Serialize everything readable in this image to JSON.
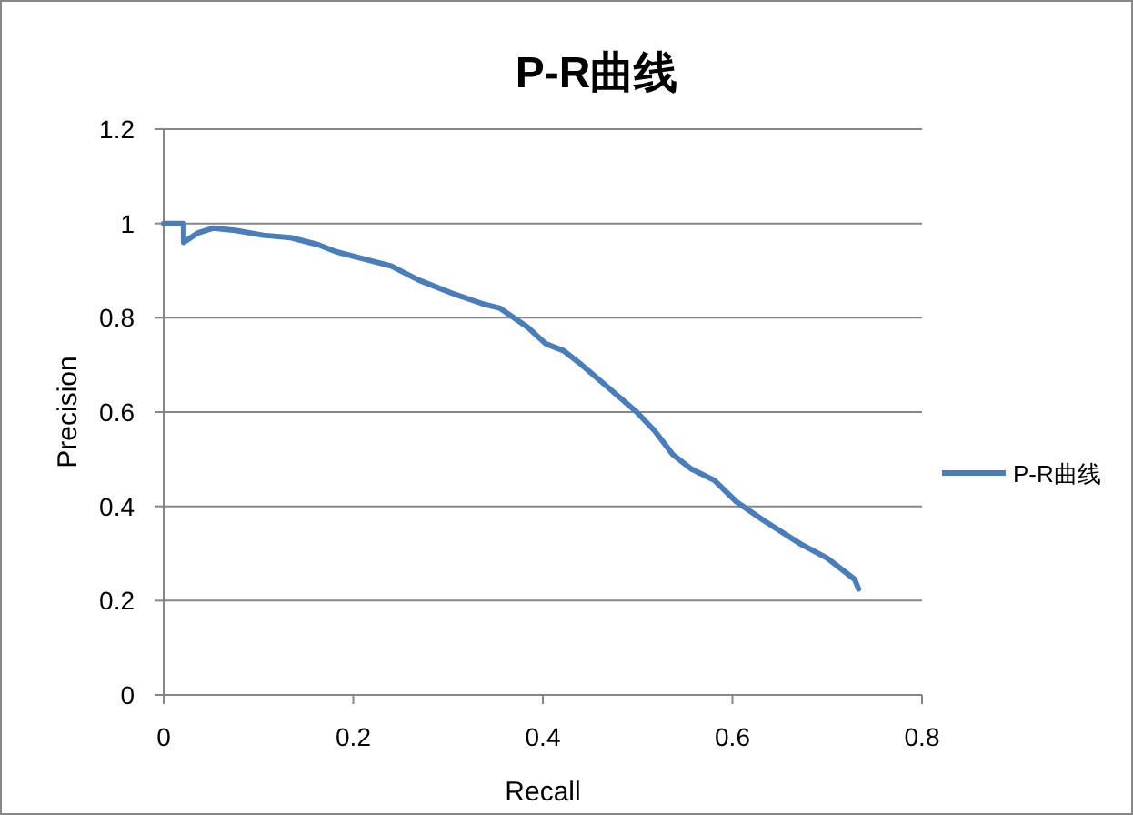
{
  "chart_data": {
    "type": "line",
    "title": "P-R曲线",
    "xlabel": "Recall",
    "ylabel": "Precision",
    "xlim": [
      0,
      0.8
    ],
    "xticks": [
      0,
      0.2,
      0.4,
      0.6,
      0.8
    ],
    "ylim": [
      0,
      1.2
    ],
    "yticks": [
      0,
      0.2,
      0.4,
      0.6,
      0.8,
      1,
      1.2
    ],
    "grid": "y",
    "legend": "right",
    "marker": "none",
    "line_style": "solid",
    "series": [
      {
        "name": "P-R曲线",
        "color": "#4a7ebb",
        "x": [
          0,
          0.021,
          0.021,
          0.036,
          0.052,
          0.077,
          0.105,
          0.134,
          0.163,
          0.182,
          0.211,
          0.24,
          0.269,
          0.307,
          0.336,
          0.355,
          0.384,
          0.403,
          0.422,
          0.441,
          0.47,
          0.499,
          0.518,
          0.537,
          0.556,
          0.581,
          0.604,
          0.633,
          0.672,
          0.7,
          0.729,
          0.733
        ],
        "values": [
          1,
          1,
          0.96,
          0.98,
          0.99,
          0.985,
          0.975,
          0.97,
          0.955,
          0.94,
          0.925,
          0.91,
          0.88,
          0.85,
          0.83,
          0.82,
          0.78,
          0.745,
          0.73,
          0.7,
          0.65,
          0.6,
          0.56,
          0.51,
          0.48,
          0.455,
          0.41,
          0.37,
          0.32,
          0.29,
          0.245,
          0.225
        ]
      }
    ]
  }
}
